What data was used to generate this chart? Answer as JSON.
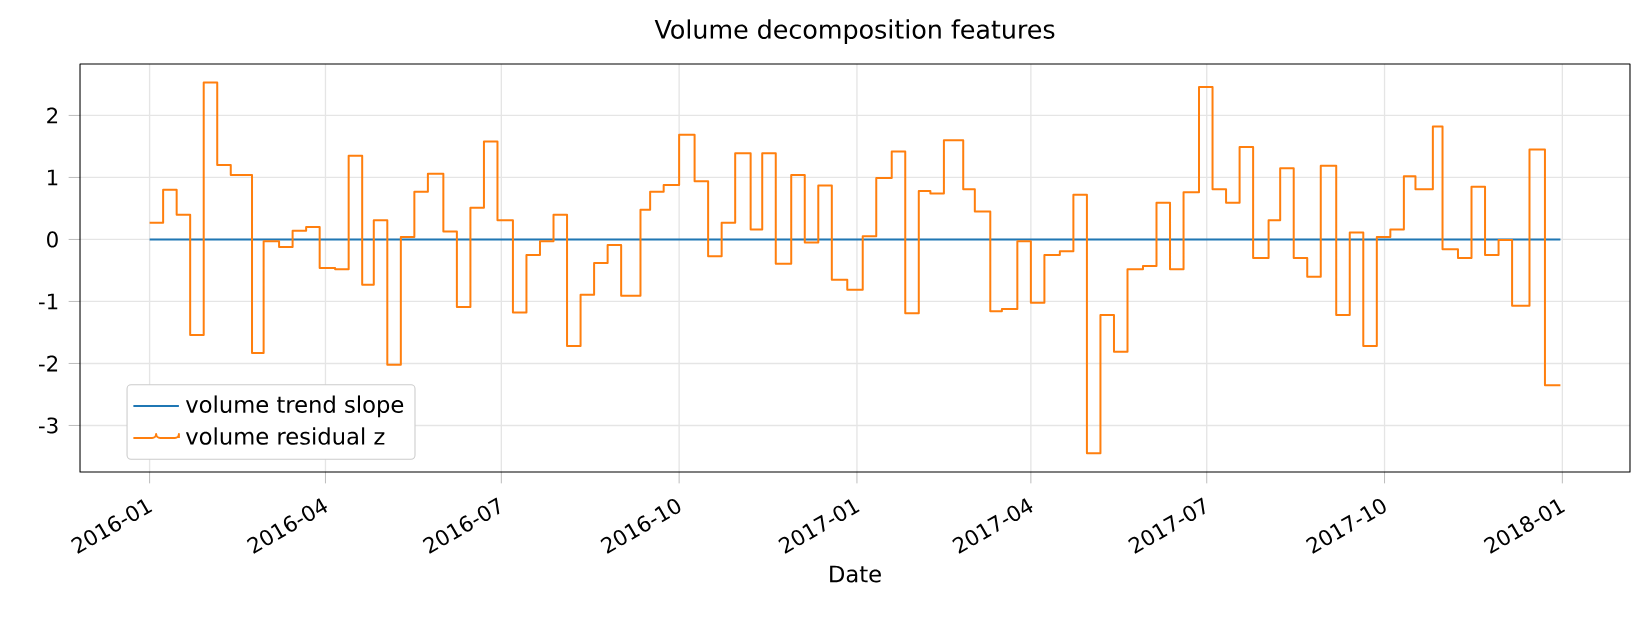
{
  "chart_data": {
    "type": "line",
    "title": "Volume decomposition features",
    "xlabel": "Date",
    "xlim": [
      "2015-11-26",
      "2018-02-05"
    ],
    "ylim": [
      -3.75,
      2.83
    ],
    "xticks": [
      {
        "value": "2016-01-01",
        "label": "2016-01"
      },
      {
        "value": "2016-04-01",
        "label": "2016-04"
      },
      {
        "value": "2016-07-01",
        "label": "2016-07"
      },
      {
        "value": "2016-10-01",
        "label": "2016-10"
      },
      {
        "value": "2017-01-01",
        "label": "2017-01"
      },
      {
        "value": "2017-04-01",
        "label": "2017-04"
      },
      {
        "value": "2017-07-01",
        "label": "2017-07"
      },
      {
        "value": "2017-10-01",
        "label": "2017-10"
      },
      {
        "value": "2018-01-01",
        "label": "2018-01"
      }
    ],
    "yticks": [
      -3,
      -2,
      -1,
      0,
      1,
      2
    ],
    "grid": true,
    "legend": "bottom left",
    "series": [
      {
        "name": "volume trend slope",
        "color": "#1f77b4",
        "x": [
          "2016-01-01",
          "2017-12-31"
        ],
        "values": [
          0,
          0
        ]
      },
      {
        "name": "volume residual z",
        "type": "step",
        "color": "#ff7f0e",
        "x": [
          "2016-01-01",
          "2016-01-08",
          "2016-01-15",
          "2016-01-22",
          "2016-01-29",
          "2016-02-05",
          "2016-02-12",
          "2016-02-23",
          "2016-02-29",
          "2016-03-08",
          "2016-03-15",
          "2016-03-22",
          "2016-03-29",
          "2016-04-06",
          "2016-04-13",
          "2016-04-20",
          "2016-04-26",
          "2016-05-03",
          "2016-05-10",
          "2016-05-17",
          "2016-05-24",
          "2016-06-01",
          "2016-06-08",
          "2016-06-15",
          "2016-06-22",
          "2016-06-29",
          "2016-07-07",
          "2016-07-14",
          "2016-07-21",
          "2016-07-28",
          "2016-08-04",
          "2016-08-11",
          "2016-08-18",
          "2016-08-25",
          "2016-09-01",
          "2016-09-11",
          "2016-09-16",
          "2016-09-23",
          "2016-10-01",
          "2016-10-09",
          "2016-10-16",
          "2016-10-23",
          "2016-10-30",
          "2016-11-07",
          "2016-11-13",
          "2016-11-20",
          "2016-11-28",
          "2016-12-05",
          "2016-12-12",
          "2016-12-19",
          "2016-12-27",
          "2017-01-04",
          "2017-01-11",
          "2017-01-19",
          "2017-01-26",
          "2017-02-02",
          "2017-02-08",
          "2017-02-15",
          "2017-02-25",
          "2017-03-03",
          "2017-03-11",
          "2017-03-17",
          "2017-03-25",
          "2017-04-01",
          "2017-04-08",
          "2017-04-16",
          "2017-04-23",
          "2017-04-30",
          "2017-05-07",
          "2017-05-14",
          "2017-05-21",
          "2017-05-29",
          "2017-06-05",
          "2017-06-12",
          "2017-06-19",
          "2017-06-27",
          "2017-07-04",
          "2017-07-11",
          "2017-07-18",
          "2017-07-25",
          "2017-08-02",
          "2017-08-08",
          "2017-08-15",
          "2017-08-22",
          "2017-08-29",
          "2017-09-06",
          "2017-09-13",
          "2017-09-20",
          "2017-09-27",
          "2017-10-04",
          "2017-10-11",
          "2017-10-17",
          "2017-10-26",
          "2017-10-31",
          "2017-11-08",
          "2017-11-15",
          "2017-11-22",
          "2017-11-29",
          "2017-12-06",
          "2017-12-15",
          "2017-12-23",
          "2017-12-31"
        ],
        "values": [
          0.27,
          0.8,
          0.4,
          -1.54,
          2.53,
          1.2,
          1.04,
          -1.83,
          -0.03,
          -0.12,
          0.14,
          0.2,
          -0.46,
          -0.48,
          1.35,
          -0.73,
          0.31,
          -2.02,
          0.04,
          0.77,
          1.06,
          0.13,
          -1.09,
          0.51,
          1.58,
          0.31,
          -1.18,
          -0.25,
          -0.03,
          0.4,
          -1.72,
          -0.89,
          -0.38,
          -0.09,
          -0.91,
          0.48,
          0.77,
          0.88,
          1.69,
          0.94,
          -0.27,
          0.27,
          1.39,
          0.16,
          1.39,
          -0.39,
          1.04,
          -0.05,
          0.87,
          -0.65,
          -0.81,
          0.05,
          0.99,
          1.42,
          -1.19,
          0.78,
          0.74,
          1.6,
          0.81,
          0.45,
          -1.16,
          -1.12,
          -0.03,
          -1.02,
          -0.25,
          -0.19,
          0.72,
          -3.45,
          -1.22,
          -1.81,
          -0.48,
          -0.43,
          0.59,
          -0.48,
          0.76,
          2.46,
          0.81,
          0.59,
          1.49,
          -0.3,
          0.31,
          1.15,
          -0.3,
          -0.6,
          1.19,
          -1.22,
          0.11,
          -1.72,
          0.04,
          0.16,
          1.02,
          0.81,
          1.82,
          -0.16,
          -0.3,
          0.85,
          -0.25,
          -0.01,
          -1.07,
          1.45,
          -2.35,
          -2.35
        ]
      }
    ]
  }
}
